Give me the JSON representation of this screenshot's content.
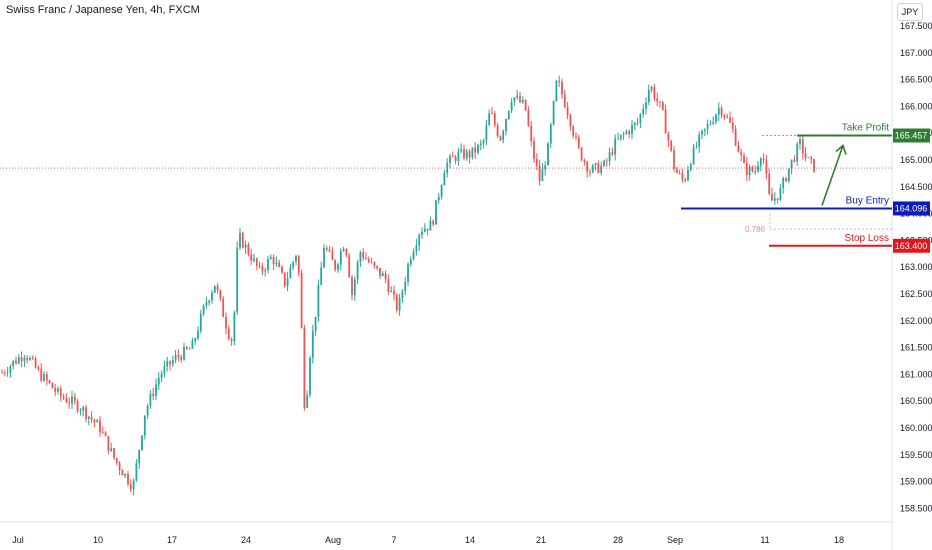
{
  "header": {
    "title": "Swiss Franc / Japanese Yen, 4h, FXCM",
    "currency": "JPY"
  },
  "colors": {
    "up": "#26a69a",
    "down": "#ef5350",
    "take_profit": "#2e7d32",
    "buy_entry": "#0d1cb5",
    "stop_loss": "#e3171b",
    "last_price_line": "#ef5350",
    "fib": "#f08b8b"
  },
  "chart_data": {
    "type": "candlestick",
    "x_tick_labels": [
      "Jul",
      "10",
      "17",
      "24",
      "Aug",
      "7",
      "14",
      "21",
      "28",
      "Sep",
      "11",
      "18"
    ],
    "y_tick_labels": [
      "158.500",
      "159.000",
      "159.500",
      "160.000",
      "160.500",
      "161.000",
      "161.500",
      "162.000",
      "162.500",
      "163.000",
      "163.500",
      "164.000",
      "164.500",
      "165.000",
      "165.500",
      "166.000",
      "166.500",
      "167.000",
      "167.500"
    ],
    "ylim": [
      158.3,
      167.8
    ],
    "grid": false,
    "last_price": 164.85,
    "path_points": [
      [
        0,
        161.0
      ],
      [
        12,
        161.2
      ],
      [
        25,
        161.4
      ],
      [
        40,
        161.0
      ],
      [
        60,
        160.6
      ],
      [
        80,
        160.4
      ],
      [
        100,
        160.0
      ],
      [
        115,
        159.4
      ],
      [
        133,
        158.9
      ],
      [
        145,
        160.3
      ],
      [
        160,
        161.0
      ],
      [
        175,
        161.3
      ],
      [
        192,
        161.5
      ],
      [
        205,
        162.3
      ],
      [
        215,
        162.7
      ],
      [
        228,
        161.8
      ],
      [
        233,
        161.6
      ],
      [
        238,
        163.6
      ],
      [
        248,
        163.3
      ],
      [
        260,
        162.9
      ],
      [
        272,
        163.2
      ],
      [
        285,
        162.7
      ],
      [
        297,
        163.3
      ],
      [
        300,
        162.6
      ],
      [
        305,
        160.2
      ],
      [
        310,
        161.4
      ],
      [
        316,
        162.2
      ],
      [
        324,
        163.4
      ],
      [
        335,
        163.0
      ],
      [
        345,
        163.5
      ],
      [
        352,
        162.5
      ],
      [
        360,
        163.3
      ],
      [
        373,
        163.0
      ],
      [
        385,
        162.8
      ],
      [
        398,
        162.2
      ],
      [
        410,
        163.2
      ],
      [
        420,
        163.7
      ],
      [
        432,
        163.8
      ],
      [
        445,
        164.9
      ],
      [
        458,
        165.1
      ],
      [
        470,
        165.1
      ],
      [
        483,
        165.3
      ],
      [
        490,
        165.9
      ],
      [
        500,
        165.4
      ],
      [
        512,
        166.2
      ],
      [
        525,
        166.0
      ],
      [
        532,
        165.2
      ],
      [
        540,
        164.6
      ],
      [
        548,
        165.2
      ],
      [
        557,
        166.5
      ],
      [
        568,
        165.9
      ],
      [
        578,
        165.2
      ],
      [
        590,
        164.8
      ],
      [
        605,
        164.9
      ],
      [
        615,
        165.3
      ],
      [
        625,
        165.5
      ],
      [
        638,
        165.7
      ],
      [
        650,
        166.4
      ],
      [
        662,
        165.9
      ],
      [
        668,
        165.4
      ],
      [
        675,
        164.8
      ],
      [
        684,
        164.6
      ],
      [
        690,
        165.0
      ],
      [
        700,
        165.4
      ],
      [
        710,
        165.7
      ],
      [
        720,
        166.0
      ],
      [
        732,
        165.6
      ],
      [
        745,
        164.8
      ],
      [
        755,
        164.8
      ],
      [
        762,
        165.2
      ],
      [
        770,
        164.2
      ],
      [
        780,
        164.4
      ],
      [
        790,
        164.9
      ],
      [
        800,
        165.3
      ],
      [
        807,
        165.0
      ],
      [
        815,
        164.85
      ]
    ],
    "levels": [
      {
        "label": "Take Profit",
        "value": 165.457,
        "value_label": "165.457"
      },
      {
        "label": "Buy Entry",
        "value": 164.096,
        "value_label": "164.096"
      },
      {
        "label": "Stop Loss",
        "value": 163.4,
        "value_label": "163.400"
      }
    ],
    "fib": {
      "label": "0.786",
      "value": 163.71
    }
  }
}
